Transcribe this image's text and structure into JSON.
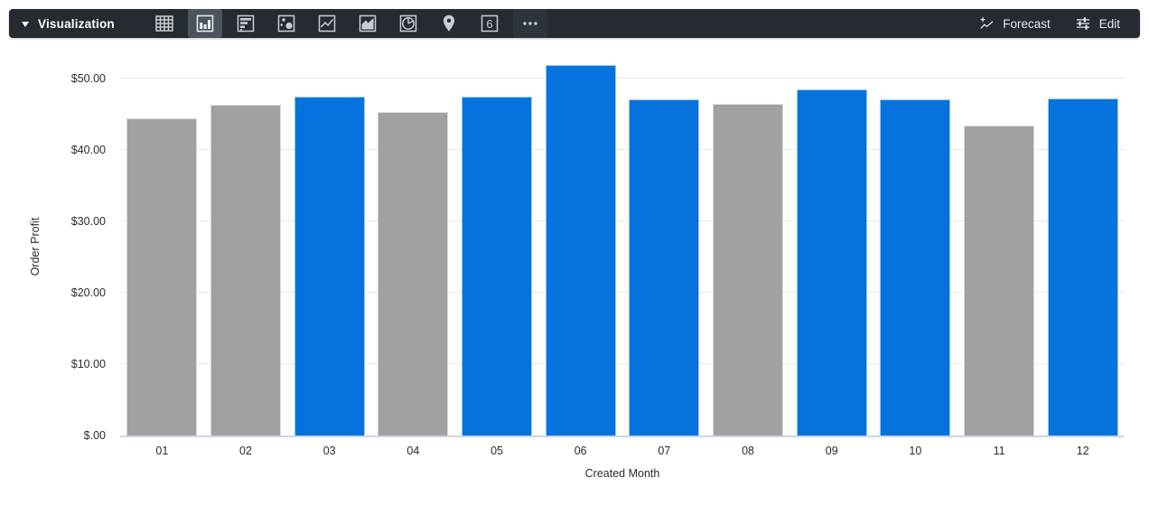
{
  "toolbar": {
    "title": "Visualization",
    "vis_types": [
      "table",
      "column",
      "bar",
      "scatter",
      "line",
      "area",
      "pie",
      "map",
      "single-value",
      "more"
    ],
    "selected_vis": "column",
    "single_value_glyph": "6",
    "forecast_label": "Forecast",
    "edit_label": "Edit",
    "colors": {
      "background": "#262b31",
      "selected_background": "#4b545c",
      "icon": "#c9ced3",
      "text": "#e6e9ec"
    }
  },
  "chart_data": {
    "type": "bar",
    "categories": [
      "01",
      "02",
      "03",
      "04",
      "05",
      "06",
      "07",
      "08",
      "09",
      "10",
      "11",
      "12"
    ],
    "values": [
      44.4,
      46.4,
      47.5,
      45.3,
      47.5,
      51.9,
      47.1,
      46.5,
      48.5,
      47.1,
      43.5,
      47.3
    ],
    "bar_color_keys": [
      "muted",
      "muted",
      "default",
      "muted",
      "default",
      "default",
      "default",
      "muted",
      "default",
      "default",
      "muted",
      "default"
    ],
    "palette": {
      "default": "#0572de",
      "muted": "#a1a1a1"
    },
    "title": "",
    "xlabel": "Created Month",
    "ylabel": "Order Profit",
    "y_ticks": [
      {
        "value": 0,
        "label": "$.00"
      },
      {
        "value": 10,
        "label": "$10.00"
      },
      {
        "value": 20,
        "label": "$20.00"
      },
      {
        "value": 30,
        "label": "$30.00"
      },
      {
        "value": 40,
        "label": "$40.00"
      },
      {
        "value": 50,
        "label": "$50.00"
      }
    ],
    "ylim": [
      0,
      53.2
    ],
    "grid": true,
    "legend": "none",
    "axis_line_color": "#ccd6e3",
    "gridline_color": "#e8e8e8"
  }
}
